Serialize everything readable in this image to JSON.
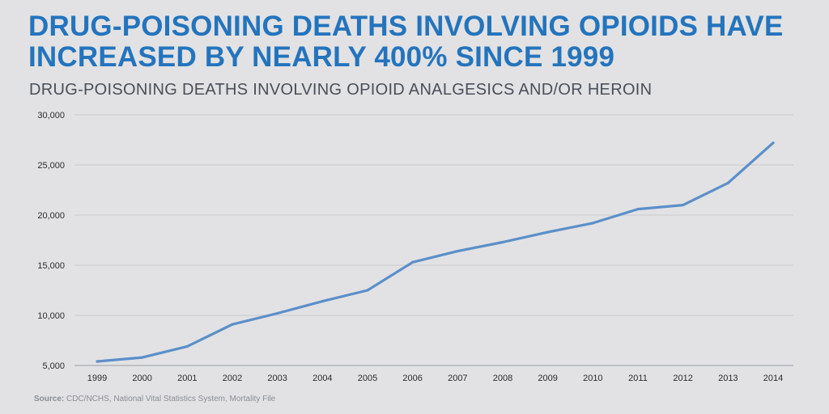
{
  "header": {
    "title_line1": "DRUG-POISONING DEATHS INVOLVING OPIOIDS HAVE",
    "title_line2": "INCREASED BY NEARLY 400% SINCE 1999",
    "subtitle": "DRUG-POISONING DEATHS INVOLVING OPIOID ANALGESICS AND/OR HEROIN"
  },
  "footer": {
    "source_label": "Source:",
    "source_text": "CDC/NCHS, National Vital Statistics System, Mortality File"
  },
  "colors": {
    "title": "#2474bd",
    "line": "#5b8fc9",
    "grid": "#c9cacd",
    "background": "#e2e2e4"
  },
  "chart_data": {
    "type": "line",
    "title": "DRUG-POISONING DEATHS INVOLVING OPIOID ANALGESICS AND/OR HEROIN",
    "xlabel": "",
    "ylabel": "",
    "x": [
      "1999",
      "2000",
      "2001",
      "2002",
      "2003",
      "2004",
      "2005",
      "2006",
      "2007",
      "2008",
      "2009",
      "2010",
      "2011",
      "2012",
      "2013",
      "2014"
    ],
    "series": [
      {
        "values": [
          5400,
          5800,
          6900,
          9100,
          10200,
          11400,
          12500,
          15300,
          16400,
          17300,
          18300,
          19200,
          20600,
          21000,
          23200,
          27200
        ]
      }
    ],
    "ylim": [
      5000,
      30000
    ],
    "yticks": [
      5000,
      10000,
      15000,
      20000,
      25000,
      30000
    ],
    "ytick_labels": [
      "5,000",
      "10,000",
      "15,000",
      "20,000",
      "25,000",
      "30,000"
    ],
    "grid": true,
    "legend": "none"
  }
}
